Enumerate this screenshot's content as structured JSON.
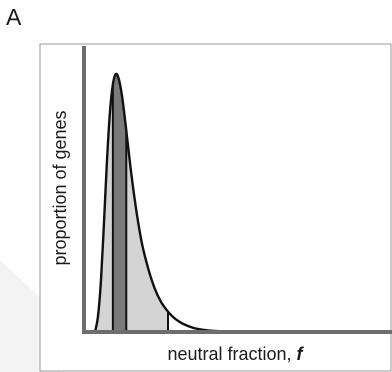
{
  "panel": {
    "label": "A"
  },
  "chart_data": {
    "type": "area",
    "title": "",
    "xlabel_prefix": "neutral fraction, ",
    "xlabel_symbol": "f",
    "ylabel": "proportion of genes",
    "xlim": [
      0,
      1
    ],
    "ylim": [
      0,
      1
    ],
    "ticks": "none",
    "grid": false,
    "curve": {
      "description_free": true,
      "x": [
        0.0,
        0.01,
        0.02,
        0.03,
        0.04,
        0.05,
        0.06,
        0.07,
        0.08,
        0.09,
        0.1,
        0.11,
        0.12,
        0.13,
        0.14,
        0.15,
        0.16,
        0.18,
        0.2,
        0.22,
        0.24,
        0.26,
        0.28,
        0.3,
        0.33,
        0.36,
        0.4,
        0.45,
        0.5,
        0.55,
        0.6,
        0.7,
        0.8,
        0.9,
        1.0
      ],
      "y": [
        0.0,
        0.06,
        0.2,
        0.42,
        0.66,
        0.85,
        0.96,
        1.0,
        0.98,
        0.92,
        0.83,
        0.73,
        0.63,
        0.54,
        0.46,
        0.39,
        0.33,
        0.24,
        0.17,
        0.12,
        0.086,
        0.06,
        0.042,
        0.029,
        0.016,
        0.009,
        0.004,
        0.0015,
        0.0006,
        0.0002,
        0.0001,
        0.0,
        0.0,
        0.0,
        0.0
      ]
    },
    "intervals": [
      {
        "x0": 0.0,
        "x1": 0.245,
        "fill": "#d4d4d4"
      },
      {
        "x0": 0.06,
        "x1": 0.105,
        "fill": "#7a7a7a"
      }
    ],
    "vertical_lines": [
      0.06,
      0.105,
      0.245
    ],
    "colors": {
      "axis": "#6d6d6d",
      "curve": "#111111",
      "frame": "#9a9a9a"
    }
  }
}
